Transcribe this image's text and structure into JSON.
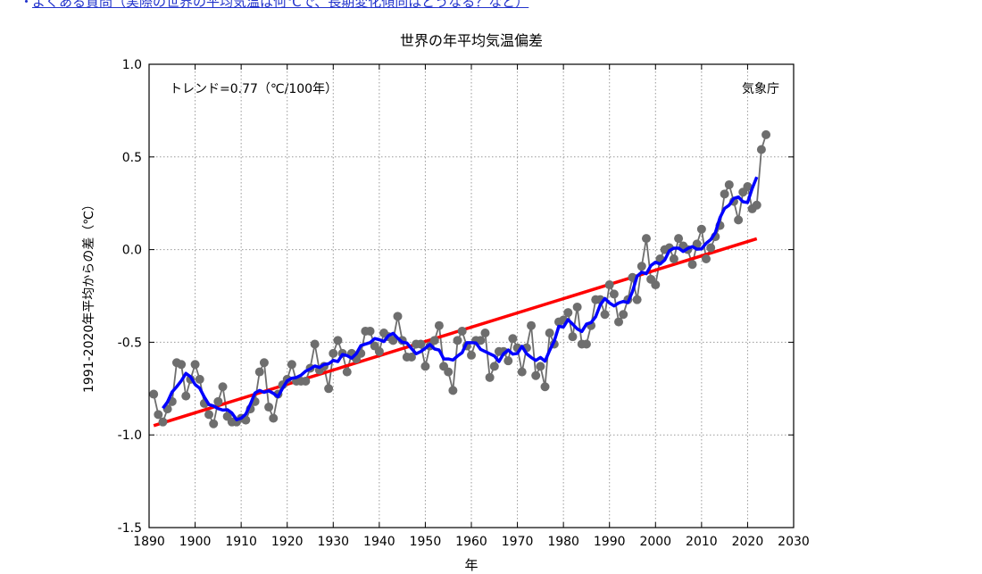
{
  "top_link": {
    "text": "よくある質問（実際の世界の平均気温は何℃で、長期変化傾向はどうなる？など）"
  },
  "chart_data": {
    "type": "line",
    "title": "世界の年平均気温偏差",
    "xlabel": "年",
    "ylabel": "1991-2020年平均からの差（℃）",
    "xlim": [
      1890,
      2030
    ],
    "ylim": [
      -1.5,
      1.0
    ],
    "xticks": [
      "1890",
      "1900",
      "1910",
      "1920",
      "1930",
      "1940",
      "1950",
      "1960",
      "1970",
      "1980",
      "1990",
      "2000",
      "2010",
      "2020",
      "2030"
    ],
    "yticks": [
      "-1.5",
      "-1.0",
      "-0.5",
      "0.0",
      "0.5",
      "1.0"
    ],
    "grid": true,
    "annotations": {
      "trend": "トレンド=0.77（℃/100年）",
      "source": "気象庁"
    },
    "colors": {
      "annual": "#6e6e6e",
      "running_mean": "#0000ff",
      "trend": "#ff0000"
    },
    "series": [
      {
        "kind": "annual",
        "x_start": 1891,
        "values": [
          -0.78,
          -0.89,
          -0.93,
          -0.86,
          -0.82,
          -0.61,
          -0.62,
          -0.79,
          -0.7,
          -0.62,
          -0.7,
          -0.83,
          -0.89,
          -0.94,
          -0.82,
          -0.74,
          -0.9,
          -0.93,
          -0.93,
          -0.91,
          -0.92,
          -0.86,
          -0.82,
          -0.66,
          -0.61,
          -0.85,
          -0.91,
          -0.78,
          -0.73,
          -0.7,
          -0.62,
          -0.71,
          -0.71,
          -0.71,
          -0.64,
          -0.51,
          -0.65,
          -0.63,
          -0.75,
          -0.56,
          -0.49,
          -0.56,
          -0.66,
          -0.56,
          -0.59,
          -0.56,
          -0.44,
          -0.44,
          -0.52,
          -0.55,
          -0.45,
          -0.47,
          -0.49,
          -0.36,
          -0.49,
          -0.58,
          -0.58,
          -0.51,
          -0.51,
          -0.63,
          -0.52,
          -0.49,
          -0.41,
          -0.63,
          -0.66,
          -0.76,
          -0.49,
          -0.44,
          -0.52,
          -0.57,
          -0.49,
          -0.49,
          -0.45,
          -0.69,
          -0.63,
          -0.55,
          -0.55,
          -0.6,
          -0.48,
          -0.53,
          -0.66,
          -0.53,
          -0.41,
          -0.68,
          -0.63,
          -0.74,
          -0.45,
          -0.51,
          -0.39,
          -0.38,
          -0.34,
          -0.47,
          -0.31,
          -0.51,
          -0.51,
          -0.41,
          -0.27,
          -0.27,
          -0.35,
          -0.19,
          -0.24,
          -0.39,
          -0.35,
          -0.27,
          -0.15,
          -0.27,
          -0.09,
          0.06,
          -0.16,
          -0.19,
          -0.05,
          0.0,
          0.01,
          -0.05,
          0.06,
          0.02,
          0.0,
          -0.08,
          0.03,
          0.11,
          -0.05,
          0.01,
          0.07,
          0.13,
          0.3,
          0.35,
          0.26,
          0.16,
          0.31,
          0.34,
          0.22,
          0.24,
          0.54,
          0.62
        ]
      },
      {
        "kind": "running_mean",
        "window_years": 5
      },
      {
        "kind": "trend",
        "slope_per_100yr": 0.77,
        "x_range": [
          1891,
          2022
        ],
        "value_at_start": -0.95
      }
    ]
  }
}
